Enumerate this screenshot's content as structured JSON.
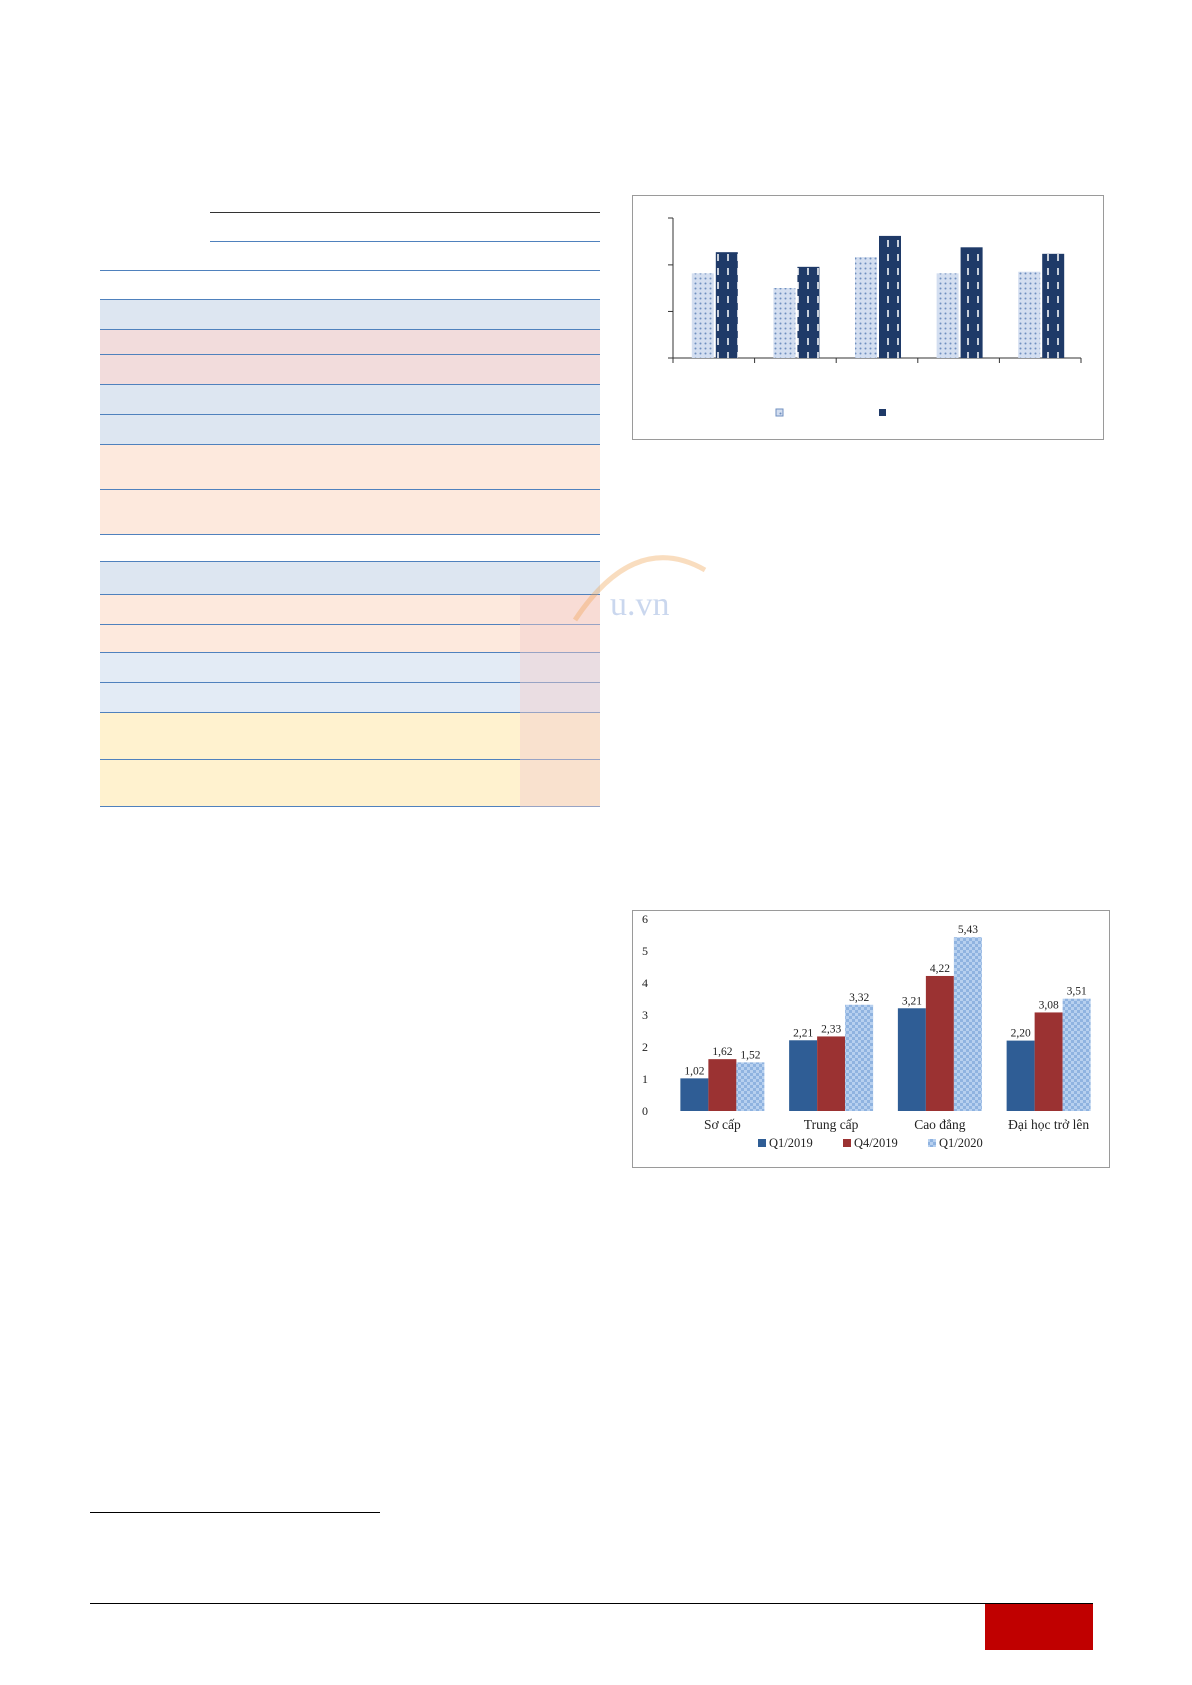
{
  "colors": {
    "q1_2019": "#2f5d95",
    "q4_2019": "#9b3232",
    "q1_2020": "#8fb3e0",
    "chart1_light": "#b7c9e3",
    "chart1_dark": "#1f3a68",
    "page_badge": "#c00000"
  },
  "watermark": {
    "text": "u.vn"
  },
  "chart_data": [
    {
      "type": "bar",
      "categories": [
        "",
        "",
        "",
        "",
        ""
      ],
      "series": [
        {
          "values": [
            2.6,
            2.15,
            3.1,
            2.6,
            2.65
          ]
        },
        {
          "values": [
            3.25,
            2.8,
            3.75,
            3.4,
            3.2
          ]
        }
      ],
      "ylim": [
        0,
        4.3
      ],
      "grid": false,
      "legend": "bottom"
    },
    {
      "type": "bar",
      "categories": [
        "Sơ cấp",
        "Trung cấp",
        "Cao đẳng",
        "Đại học trở lên"
      ],
      "series": [
        {
          "name": "Q1/2019",
          "values": [
            1.02,
            2.21,
            3.21,
            2.2
          ],
          "labels": [
            "1,02",
            "2,21",
            "3,21",
            "2,20"
          ]
        },
        {
          "name": "Q4/2019",
          "values": [
            1.62,
            2.33,
            4.22,
            3.08
          ],
          "labels": [
            "1,62",
            "2,33",
            "4,22",
            "3,08"
          ]
        },
        {
          "name": "Q1/2020",
          "values": [
            1.52,
            3.32,
            5.43,
            3.51
          ],
          "labels": [
            "1,52",
            "3,32",
            "5,43",
            "3,51"
          ]
        }
      ],
      "ylim": [
        0,
        6
      ],
      "yticks": [
        "0",
        "1",
        "2",
        "3",
        "4",
        "5",
        "6"
      ],
      "grid": false,
      "legend": "bottom"
    }
  ]
}
